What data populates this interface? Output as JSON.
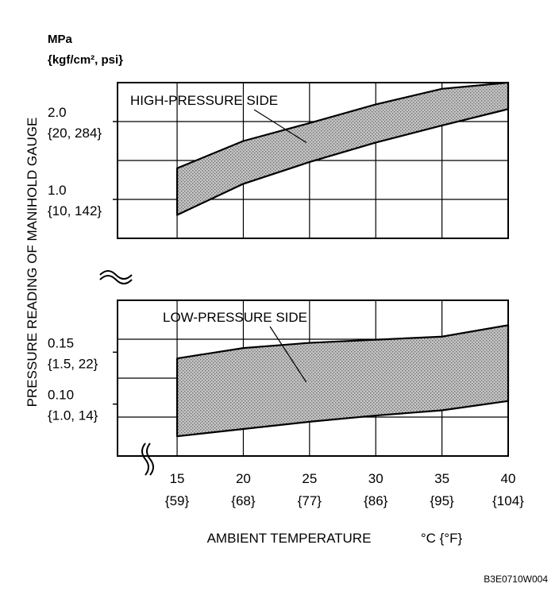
{
  "chart_data": {
    "type": "area",
    "title": "",
    "unit_label_line1": "MPa",
    "unit_label_line2": "{kgf/cm², psi}",
    "ylabel": "PRESSURE READING OF MANIHOLD GAUGE",
    "xlabel": "AMBIENT TEMPERATURE",
    "xunit": "°C {°F}",
    "figure_code": "B3E0710W004",
    "x_ticks": [
      {
        "c": "15",
        "f": "{59}"
      },
      {
        "c": "20",
        "f": "{68}"
      },
      {
        "c": "25",
        "f": "{77}"
      },
      {
        "c": "30",
        "f": "{86}"
      },
      {
        "c": "35",
        "f": "{95}"
      },
      {
        "c": "40",
        "f": "{104}"
      }
    ],
    "xlim": [
      10.5,
      40
    ],
    "panels": [
      {
        "name": "high",
        "ylim": [
          0.5,
          2.5
        ],
        "y_ticks": [
          {
            "value": 2.0,
            "label": "2.0",
            "sub": "{20, 284}"
          },
          {
            "value": 1.0,
            "label": "1.0",
            "sub": "{10, 142}"
          }
        ],
        "band": {
          "name": "HIGH-PRESSURE SIDE",
          "x": [
            15,
            20,
            25,
            30,
            35,
            40
          ],
          "upper": [
            1.4,
            1.75,
            1.98,
            2.22,
            2.42,
            2.5
          ],
          "lower": [
            0.8,
            1.2,
            1.48,
            1.73,
            1.95,
            2.16
          ]
        }
      },
      {
        "name": "low",
        "ylim": [
          0.05,
          0.2
        ],
        "y_ticks": [
          {
            "value": 0.15,
            "label": "0.15",
            "sub": "{1.5, 22}"
          },
          {
            "value": 0.1,
            "label": "0.10",
            "sub": "{1.0, 14}"
          }
        ],
        "band": {
          "name": "LOW-PRESSURE SIDE",
          "x": [
            15,
            20,
            25,
            30,
            35,
            40
          ],
          "upper": [
            0.144,
            0.154,
            0.159,
            0.162,
            0.165,
            0.176
          ],
          "lower": [
            0.069,
            0.076,
            0.083,
            0.089,
            0.094,
            0.103
          ]
        }
      }
    ]
  }
}
